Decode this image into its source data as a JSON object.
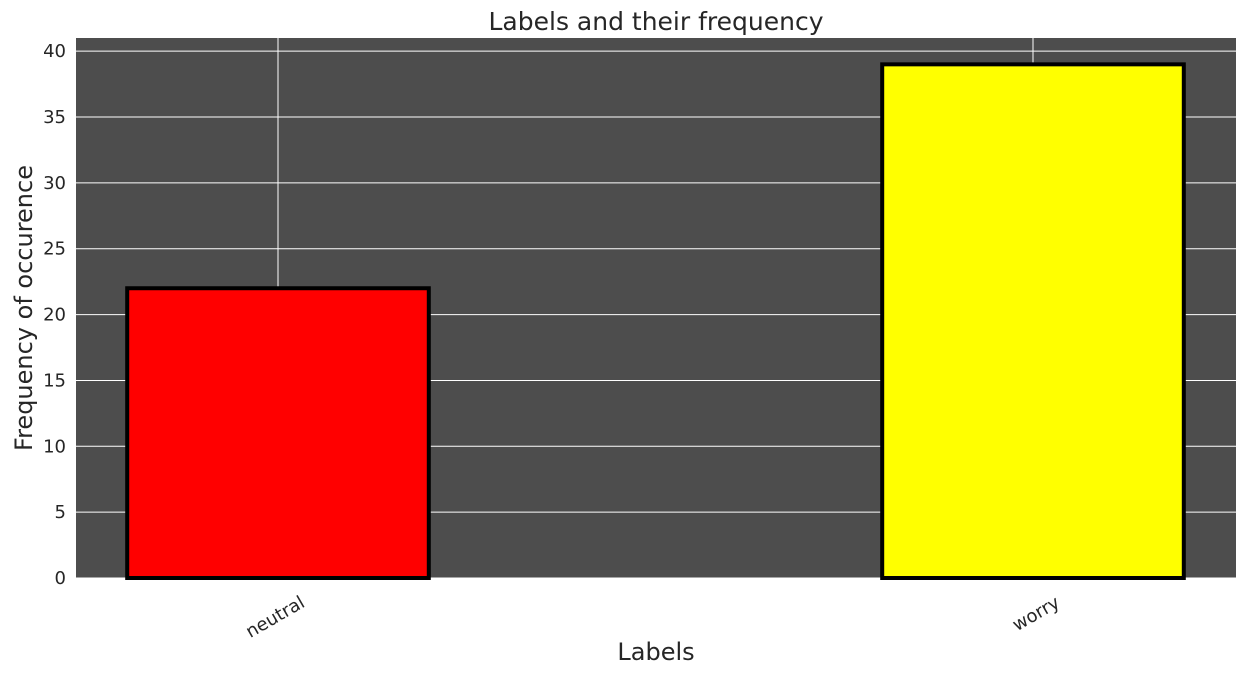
{
  "chart_data": {
    "type": "bar",
    "title": "Labels and their frequency",
    "xlabel": "Labels",
    "ylabel": "Frequency of occurence",
    "categories": [
      "neutral",
      "worry"
    ],
    "values": [
      22,
      39
    ],
    "bar_colors": [
      "#ff0000",
      "#ffff00"
    ],
    "bar_edge_color": "#000000",
    "plot_background": "#4d4d4d",
    "grid_color": "#ffffff",
    "grid": true,
    "ylim": [
      0,
      41
    ],
    "yticks": [
      0,
      5,
      10,
      15,
      20,
      25,
      30,
      35,
      40
    ],
    "ytick_labels": [
      "0",
      "5",
      "10",
      "15",
      "20",
      "25",
      "30",
      "35",
      "40"
    ]
  }
}
